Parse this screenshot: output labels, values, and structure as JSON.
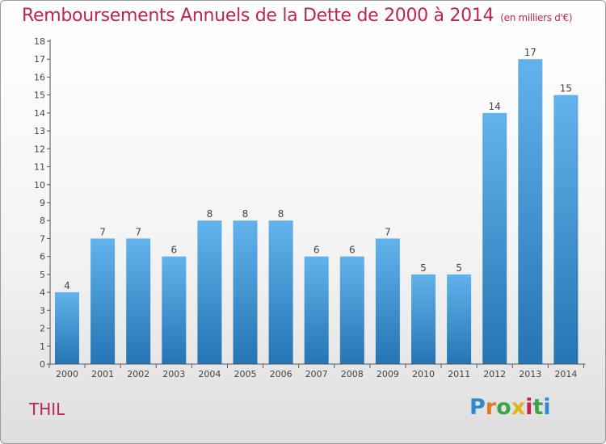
{
  "title": "Remboursements Annuels de la Dette de 2000 à 2014",
  "subtitle": "(en milliers d'€)",
  "commune": "THIL",
  "logo": {
    "text": "Proxiti",
    "letter_colors": [
      "#2f89cf",
      "#e07b22",
      "#3ea246",
      "#e0b21c",
      "#c0254e",
      "#3ea246",
      "#2f89cf"
    ]
  },
  "colors": {
    "title": "#c0254e",
    "bar_light": "#62b3ec",
    "bar_dark": "#2574b4",
    "axis": "#555555",
    "label": "#444444"
  },
  "chart_data": {
    "type": "bar",
    "categories": [
      "2000",
      "2001",
      "2002",
      "2003",
      "2004",
      "2005",
      "2006",
      "2007",
      "2008",
      "2009",
      "2010",
      "2011",
      "2012",
      "2013",
      "2014"
    ],
    "values": [
      4,
      7,
      7,
      6,
      8,
      8,
      8,
      6,
      6,
      7,
      5,
      5,
      14,
      17,
      15
    ],
    "yticks": [
      "0",
      "1",
      "2",
      "3",
      "4",
      "5",
      "6",
      "7",
      "8",
      "9",
      "10",
      "11",
      "12",
      "13",
      "14",
      "15",
      "16",
      "17",
      "18"
    ],
    "ylim": [
      0,
      18
    ],
    "xlabel": "",
    "ylabel": "",
    "grid": false
  }
}
